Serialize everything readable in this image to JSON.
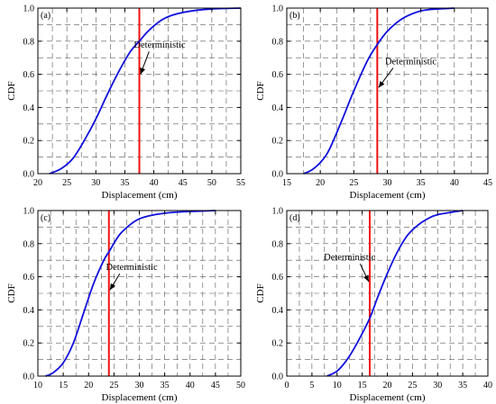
{
  "chart_data": [
    {
      "type": "line",
      "panel_label": "(a)",
      "xlabel": "Displacement (cm)",
      "ylabel": "CDF",
      "xlim": [
        20,
        55
      ],
      "ylim": [
        0,
        1.0
      ],
      "xticks": [
        20,
        25,
        30,
        35,
        40,
        45,
        50,
        55
      ],
      "yticks": [
        0.0,
        0.2,
        0.4,
        0.6,
        0.8,
        1.0
      ],
      "grid": true,
      "series": [
        {
          "values": [
            {
              "x": 22,
              "y": 0.0
            },
            {
              "x": 24,
              "y": 0.03
            },
            {
              "x": 26,
              "y": 0.09
            },
            {
              "x": 28,
              "y": 0.2
            },
            {
              "x": 30,
              "y": 0.33
            },
            {
              "x": 32,
              "y": 0.48
            },
            {
              "x": 34,
              "y": 0.62
            },
            {
              "x": 36,
              "y": 0.74
            },
            {
              "x": 37.5,
              "y": 0.8
            },
            {
              "x": 39,
              "y": 0.86
            },
            {
              "x": 41,
              "y": 0.92
            },
            {
              "x": 43,
              "y": 0.955
            },
            {
              "x": 46,
              "y": 0.98
            },
            {
              "x": 50,
              "y": 0.995
            },
            {
              "x": 55,
              "y": 1.0
            }
          ]
        }
      ],
      "deterministic": 37.5,
      "annotation": {
        "text": "Deterministic",
        "text_x": 41,
        "text_y": 0.76,
        "arrow_to_x": 37.7,
        "arrow_to_y": 0.6
      }
    },
    {
      "type": "line",
      "panel_label": "(b)",
      "xlabel": "Displacement (cm)",
      "ylabel": "CDF",
      "xlim": [
        15,
        45
      ],
      "ylim": [
        0,
        1.0
      ],
      "xticks": [
        15,
        20,
        25,
        30,
        35,
        40,
        45
      ],
      "yticks": [
        0.0,
        0.2,
        0.4,
        0.6,
        0.8,
        1.0
      ],
      "grid": true,
      "series": [
        {
          "values": [
            {
              "x": 17.5,
              "y": 0.0
            },
            {
              "x": 19,
              "y": 0.03
            },
            {
              "x": 21,
              "y": 0.12
            },
            {
              "x": 23,
              "y": 0.3
            },
            {
              "x": 25,
              "y": 0.5
            },
            {
              "x": 27,
              "y": 0.68
            },
            {
              "x": 28.5,
              "y": 0.78
            },
            {
              "x": 30,
              "y": 0.86
            },
            {
              "x": 32,
              "y": 0.93
            },
            {
              "x": 34,
              "y": 0.97
            },
            {
              "x": 36,
              "y": 0.99
            },
            {
              "x": 40,
              "y": 1.0
            }
          ]
        }
      ],
      "deterministic": 28.5,
      "annotation": {
        "text": "Deterministic",
        "text_x": 33.5,
        "text_y": 0.66,
        "arrow_to_x": 28.7,
        "arrow_to_y": 0.52
      }
    },
    {
      "type": "line",
      "panel_label": "(c)",
      "xlabel": "Displacement (cm)",
      "ylabel": "CDF",
      "xlim": [
        10,
        50
      ],
      "ylim": [
        0,
        1.0
      ],
      "xticks": [
        10,
        15,
        20,
        25,
        30,
        35,
        40,
        45,
        50
      ],
      "yticks": [
        0.0,
        0.2,
        0.4,
        0.6,
        0.8,
        1.0
      ],
      "grid": true,
      "series": [
        {
          "values": [
            {
              "x": 11.5,
              "y": 0.0
            },
            {
              "x": 13,
              "y": 0.02
            },
            {
              "x": 15,
              "y": 0.08
            },
            {
              "x": 17,
              "y": 0.2
            },
            {
              "x": 19,
              "y": 0.38
            },
            {
              "x": 21,
              "y": 0.56
            },
            {
              "x": 23,
              "y": 0.7
            },
            {
              "x": 24,
              "y": 0.75
            },
            {
              "x": 26,
              "y": 0.85
            },
            {
              "x": 28,
              "y": 0.91
            },
            {
              "x": 30,
              "y": 0.95
            },
            {
              "x": 33,
              "y": 0.975
            },
            {
              "x": 37,
              "y": 0.99
            },
            {
              "x": 45,
              "y": 1.0
            }
          ]
        }
      ],
      "deterministic": 24,
      "annotation": {
        "text": "Deterministic",
        "text_x": 28.5,
        "text_y": 0.64,
        "arrow_to_x": 24.2,
        "arrow_to_y": 0.52
      }
    },
    {
      "type": "line",
      "panel_label": "(d)",
      "xlabel": "Displacement (cm)",
      "ylabel": "CDF",
      "xlim": [
        0,
        40
      ],
      "ylim": [
        0,
        1.0
      ],
      "xticks": [
        0,
        5,
        10,
        15,
        20,
        25,
        30,
        35,
        40
      ],
      "yticks": [
        0.0,
        0.2,
        0.4,
        0.6,
        0.8,
        1.0
      ],
      "grid": true,
      "series": [
        {
          "values": [
            {
              "x": 8,
              "y": 0.0
            },
            {
              "x": 10,
              "y": 0.03
            },
            {
              "x": 12,
              "y": 0.1
            },
            {
              "x": 14,
              "y": 0.2
            },
            {
              "x": 16.5,
              "y": 0.35
            },
            {
              "x": 18,
              "y": 0.47
            },
            {
              "x": 20,
              "y": 0.62
            },
            {
              "x": 22,
              "y": 0.75
            },
            {
              "x": 24,
              "y": 0.85
            },
            {
              "x": 26,
              "y": 0.91
            },
            {
              "x": 28,
              "y": 0.95
            },
            {
              "x": 30,
              "y": 0.975
            },
            {
              "x": 35,
              "y": 1.0
            }
          ]
        }
      ],
      "deterministic": 16.5,
      "annotation": {
        "text": "Deterministic",
        "text_x": 12.5,
        "text_y": 0.7,
        "arrow_to_x": 16.3,
        "arrow_to_y": 0.57
      }
    }
  ],
  "colors": {
    "curve": "#1010dd",
    "deterministic_line": "#ee1111",
    "grid": "#555555",
    "axis": "#000000"
  }
}
